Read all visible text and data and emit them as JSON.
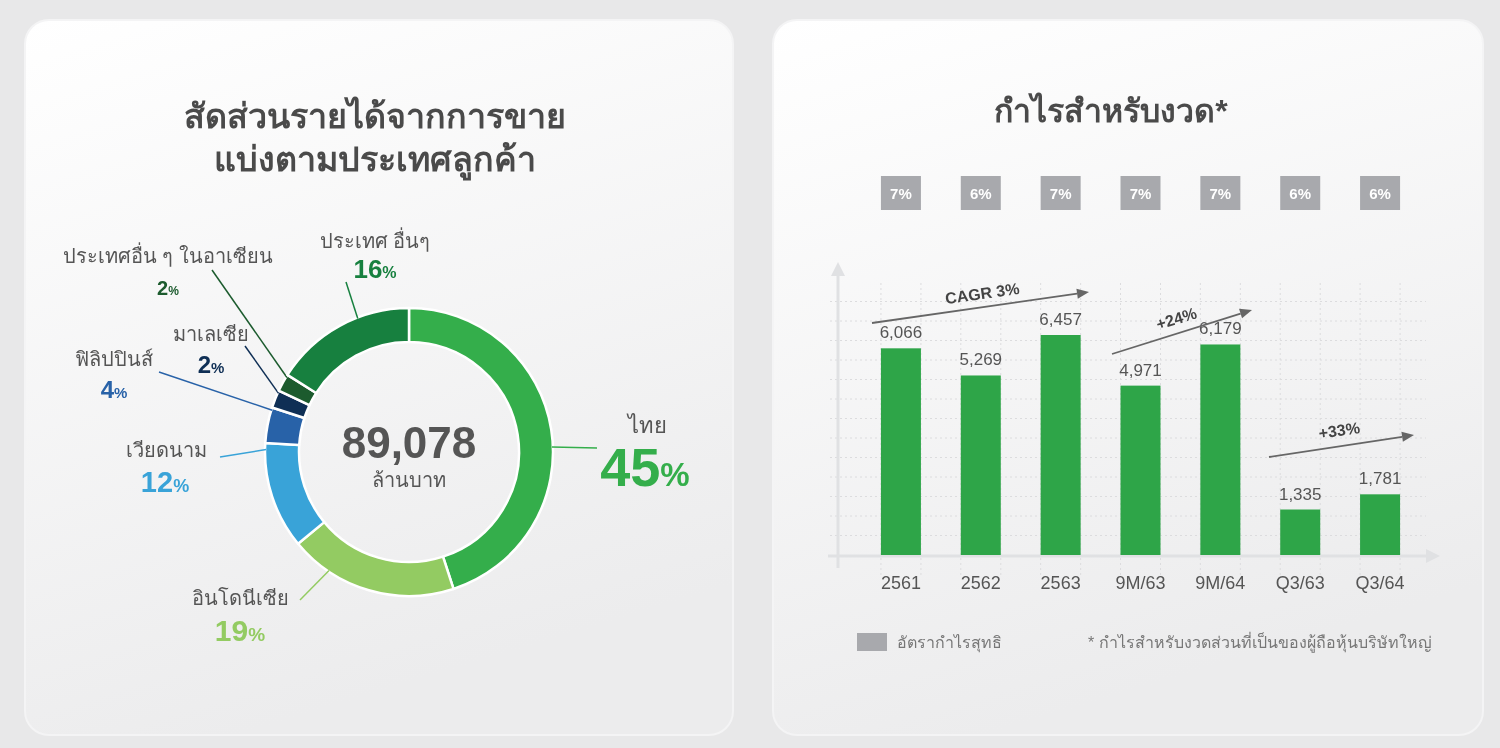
{
  "chart_data": [
    {
      "type": "donut",
      "title": "สัดส่วนรายได้จากการขาย แบ่งตามประเทศลูกค้า",
      "categories": [
        "ไทย",
        "อินโดนีเซีย",
        "เวียดนาม",
        "ฟิลิปปินส์",
        "มาเลเซีย",
        "ประเทศอื่น ๆ ในอาเซียน",
        "ประเทศ อื่นๆ"
      ],
      "values": [
        45,
        19,
        12,
        4,
        2,
        2,
        16
      ],
      "value_labels": [
        "45%",
        "19%",
        "12%",
        "4%",
        "2%",
        "2%",
        "16%"
      ],
      "colors": [
        "#34ae4b",
        "#93cb62",
        "#39a3d8",
        "#2862a8",
        "#0f2f55",
        "#1c5b2e",
        "#17803f"
      ],
      "annotations": [
        "89,078",
        "ล้านบาท"
      ]
    },
    {
      "type": "bar",
      "title": "กำไรสำหรับงวด*",
      "categories": [
        "2561",
        "2562",
        "2563",
        "9M/63",
        "9M/64",
        "Q3/63",
        "Q3/64"
      ],
      "color": "#2ea548",
      "values": [
        6066,
        5269,
        6457,
        4971,
        6179,
        1335,
        1781
      ],
      "value_labels": [
        "6,066",
        "5,269",
        "6,457",
        "4,971",
        "6,179",
        "1,335",
        "1,781"
      ],
      "grid": true,
      "annotations": [
        "CAGR 3%",
        "+24%",
        "+33%",
        "* กำไรสำหรับงวดส่วนที่เป็นของผู้ถือหุ้นบริษัทใหญ่"
      ]
    },
    {
      "type": "other",
      "series": [
        {
          "name": "อัตรากำไรสุทธิ",
          "color": "#a8a9ad",
          "values": [
            7,
            6,
            7,
            7,
            7,
            6,
            6
          ],
          "value_labels": [
            "7%",
            "6%",
            "7%",
            "7%",
            "7%",
            "6%",
            "6%"
          ]
        }
      ],
      "legend": "bottom"
    }
  ]
}
